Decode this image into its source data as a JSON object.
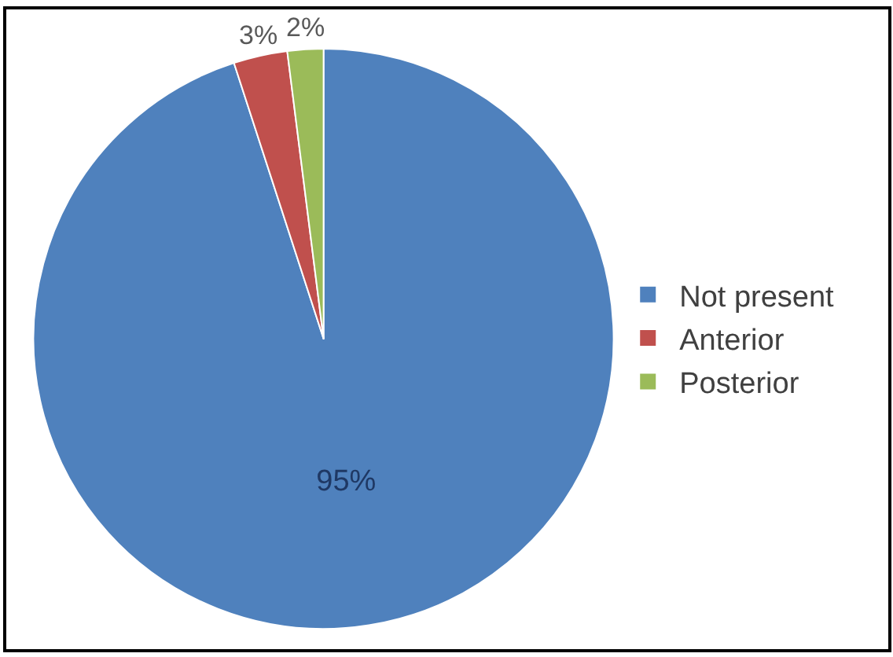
{
  "chart_data": {
    "type": "pie",
    "categories": [
      "Not present",
      "Anterior",
      "Posterior"
    ],
    "values": [
      95,
      3,
      2
    ],
    "colors": [
      "#4f81bd",
      "#c0504d",
      "#9bbb59"
    ],
    "value_labels": [
      "95%",
      "3%",
      "2%"
    ],
    "legend": "right"
  }
}
